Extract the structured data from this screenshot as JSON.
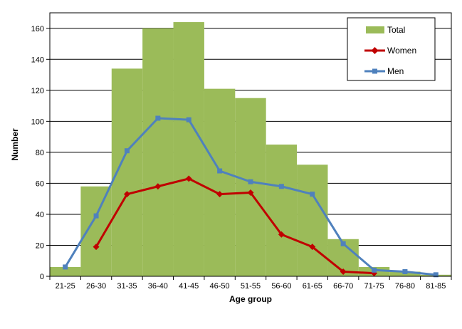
{
  "chart_data": {
    "type": "bar",
    "xlabel": "Age group",
    "ylabel": "Number",
    "ylim": [
      0,
      170
    ],
    "yticks": [
      0,
      20,
      40,
      60,
      80,
      100,
      120,
      140,
      160
    ],
    "grid": "horizontal",
    "legend_position": "top-right",
    "categories": [
      "21-25",
      "26-30",
      "31-35",
      "36-40",
      "41-45",
      "46-50",
      "51-55",
      "56-60",
      "61-65",
      "66-70",
      "71-75",
      "76-80",
      "81-85"
    ],
    "series": [
      {
        "name": "Total",
        "kind": "bar",
        "color": "#9BBB59",
        "values": [
          6,
          58,
          134,
          160,
          164,
          121,
          115,
          85,
          72,
          24,
          6,
          3,
          1
        ]
      },
      {
        "name": "Women",
        "kind": "line",
        "marker": "diamond",
        "color": "#C00000",
        "values": [
          null,
          19,
          53,
          58,
          63,
          53,
          54,
          27,
          19,
          3,
          2,
          null,
          null
        ]
      },
      {
        "name": "Men",
        "kind": "line",
        "marker": "square",
        "color": "#4F81BD",
        "values": [
          6,
          39,
          81,
          102,
          101,
          68,
          61,
          58,
          53,
          21,
          4,
          3,
          1
        ]
      }
    ]
  }
}
